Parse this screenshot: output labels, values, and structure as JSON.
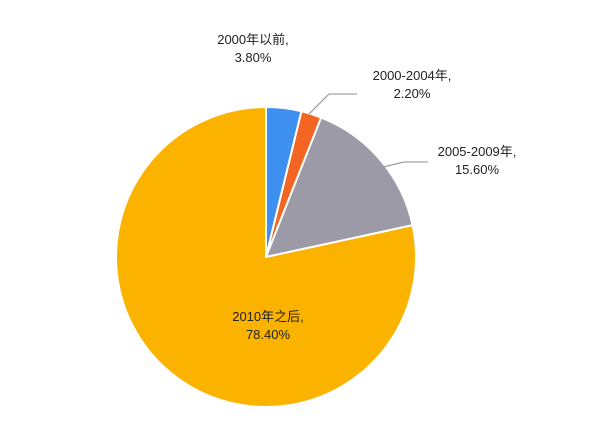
{
  "chart_data": {
    "type": "pie",
    "title": "",
    "unit": "%",
    "start_angle_deg": 0,
    "direction": "clockwise",
    "slices": [
      {
        "name": "2000年以前",
        "value": 3.8,
        "label_line1": "2000年以前,",
        "label_line2": "3.80%",
        "color": "#3d8ff0"
      },
      {
        "name": "2000-2004年",
        "value": 2.2,
        "label_line1": "2000-2004年,",
        "label_line2": "2.20%",
        "color": "#f26522"
      },
      {
        "name": "2005-2009年",
        "value": 15.6,
        "label_line1": "2005-2009年,",
        "label_line2": "15.60%",
        "color": "#9b9aa6"
      },
      {
        "name": "2010年之后",
        "value": 78.4,
        "label_line1": "2010年之后,",
        "label_line2": "78.40%",
        "color": "#fbb300"
      }
    ]
  }
}
